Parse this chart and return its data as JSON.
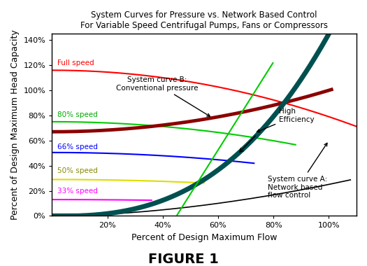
{
  "title_line1": "System Curves for Pressure vs. Network Based Control",
  "title_line2": "For Variable Speed Centrifugal Pumps, Fans or Compressors",
  "xlabel": "Percent of Design Maximum Flow",
  "ylabel": "Percent of Design Maximum Head Capacity",
  "figure_label": "FIGURE 1",
  "xlim": [
    0,
    110
  ],
  "ylim": [
    0,
    145
  ],
  "xticks": [
    20,
    40,
    60,
    80,
    100
  ],
  "yticks": [
    0,
    20,
    40,
    60,
    80,
    100,
    120,
    140
  ],
  "background_color": "#ffffff"
}
